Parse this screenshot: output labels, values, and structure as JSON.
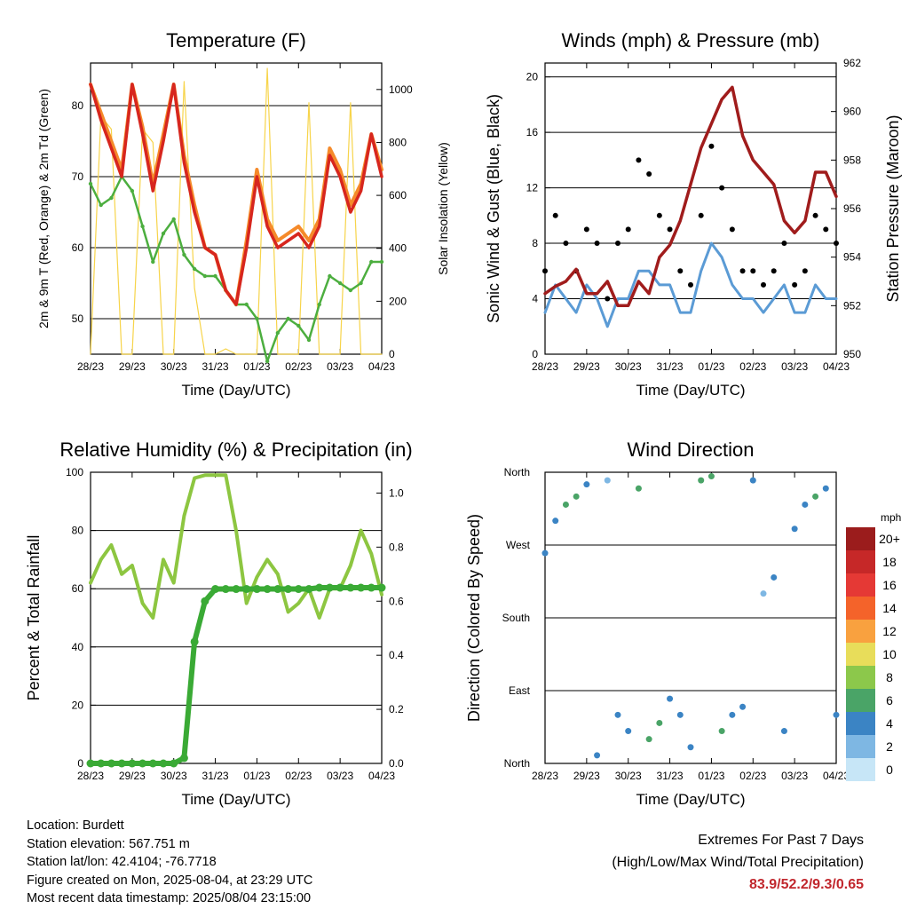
{
  "x_ticks": [
    "28/23",
    "29/23",
    "30/23",
    "31/23",
    "01/23",
    "02/23",
    "03/23",
    "04/23"
  ],
  "info": {
    "location": "Location: Burdett",
    "elevation": "Station elevation: 567.751 m",
    "latlon": "Station lat/lon: 42.4104; -76.7718",
    "created": "Figure created on Mon, 2025-08-04, at 23:29 UTC",
    "recent": "Most recent data timestamp: 2025/08/04 23:15:00"
  },
  "extremes": {
    "title": "Extremes For Past 7 Days",
    "subtitle": "(High/Low/Max Wind/Total Precipitation)",
    "values": "83.9/52.2/9.3/0.65"
  },
  "legend": {
    "title": "mph",
    "labels": [
      "20+",
      "18",
      "16",
      "14",
      "12",
      "10",
      "8",
      "6",
      "4",
      "2",
      "0"
    ],
    "colors": [
      "#9b1c1c",
      "#c62828",
      "#e53935",
      "#f4632a",
      "#f9a13f",
      "#e8dd5a",
      "#8cc84b",
      "#4aa467",
      "#3b84c4",
      "#7eb7e3",
      "#c7e6f7"
    ]
  },
  "colors": {
    "temp_2m": "#d7261e",
    "temp_9m": "#f58a2a",
    "dewpoint": "#4cae3f",
    "solar": "#f7d44a",
    "wind": "#5b9bd5",
    "gust": "#000000",
    "pressure": "#a01c1c",
    "rh": "#8dc641",
    "precip": "#3aaa35"
  },
  "chart_data": [
    {
      "type": "line",
      "title": "Temperature (F)",
      "xlabel": "Time (Day/UTC)",
      "ylabel": "2m & 9m T (Red, Orange) & 2m Td (Green)",
      "ylabel_right": "Solar Insolation (Yellow)",
      "x": [
        0,
        0.25,
        0.5,
        0.75,
        1,
        1.25,
        1.5,
        1.75,
        2,
        2.25,
        2.5,
        2.75,
        3,
        3.25,
        3.5,
        3.75,
        4,
        4.25,
        4.5,
        4.75,
        5,
        5.25,
        5.5,
        5.75,
        6,
        6.25,
        6.5,
        6.75,
        7
      ],
      "ylim": [
        45,
        86
      ],
      "yticks": [
        50,
        60,
        70,
        80
      ],
      "y2lim": [
        0,
        1100
      ],
      "y2ticks": [
        0,
        200,
        400,
        600,
        800,
        1000
      ],
      "series": [
        {
          "name": "2m T (Red)",
          "values": [
            83,
            78,
            74,
            70,
            83,
            76,
            68,
            75,
            83,
            72,
            65,
            60,
            59,
            54,
            52,
            60,
            70,
            63,
            60,
            61,
            62,
            60,
            63,
            73,
            70,
            65,
            68,
            76,
            70
          ]
        },
        {
          "name": "9m T (Orange)",
          "values": [
            83,
            79,
            75,
            71,
            83,
            77,
            69,
            76,
            83,
            73,
            66,
            60,
            59,
            54,
            52,
            61,
            71,
            64,
            61,
            62,
            63,
            61,
            64,
            74,
            71,
            66,
            69,
            76,
            71
          ]
        },
        {
          "name": "2m Td (Green)",
          "values": [
            69,
            66,
            67,
            70,
            68,
            63,
            58,
            62,
            64,
            59,
            57,
            56,
            56,
            54,
            52,
            52,
            50,
            44,
            48,
            50,
            49,
            47,
            52,
            56,
            55,
            54,
            55,
            58,
            58
          ]
        },
        {
          "name": "Solar Insolation (Yellow)",
          "values": [
            0,
            900,
            850,
            0,
            0,
            850,
            800,
            0,
            0,
            1030,
            250,
            0,
            0,
            20,
            0,
            0,
            0,
            1080,
            0,
            0,
            0,
            950,
            0,
            0,
            0,
            950,
            0,
            0,
            0
          ]
        }
      ]
    },
    {
      "type": "line",
      "title": "Winds (mph) & Pressure (mb)",
      "xlabel": "Time (Day/UTC)",
      "ylabel": "Sonic Wind & Gust (Blue, Black)",
      "ylabel_right": "Station Pressure (Maroon)",
      "x": [
        0,
        0.25,
        0.5,
        0.75,
        1,
        1.25,
        1.5,
        1.75,
        2,
        2.25,
        2.5,
        2.75,
        3,
        3.25,
        3.5,
        3.75,
        4,
        4.25,
        4.5,
        4.75,
        5,
        5.25,
        5.5,
        5.75,
        6,
        6.25,
        6.5,
        6.75,
        7
      ],
      "ylim": [
        0,
        21
      ],
      "yticks": [
        0,
        4,
        8,
        12,
        16,
        20
      ],
      "y2lim": [
        950,
        962
      ],
      "y2ticks": [
        950,
        952,
        954,
        956,
        958,
        960,
        962
      ],
      "series": [
        {
          "name": "Sonic Wind (Blue)",
          "values": [
            3,
            5,
            4,
            3,
            5,
            4,
            2,
            4,
            4,
            6,
            6,
            5,
            5,
            3,
            3,
            6,
            8,
            7,
            5,
            4,
            4,
            3,
            4,
            5,
            3,
            3,
            5,
            4,
            4
          ]
        },
        {
          "name": "Gust (Black)",
          "values": [
            6,
            10,
            8,
            6,
            9,
            8,
            4,
            8,
            9,
            14,
            13,
            10,
            9,
            6,
            5,
            10,
            15,
            12,
            9,
            6,
            6,
            5,
            6,
            8,
            5,
            6,
            10,
            9,
            8
          ]
        },
        {
          "name": "Station Pressure (Maroon)",
          "values": [
            952.5,
            952.8,
            953,
            953.5,
            952.5,
            952.5,
            953,
            952,
            952,
            953,
            952.5,
            954,
            954.5,
            955.5,
            957,
            958.5,
            959.5,
            960.5,
            961,
            959,
            958,
            957.5,
            957,
            955.5,
            955,
            955.5,
            957.5,
            957.5,
            956.5
          ]
        }
      ]
    },
    {
      "type": "line",
      "title": "Relative Humidity (%) & Precipitation (in)",
      "xlabel": "Time (Day/UTC)",
      "ylabel": "Percent & Total Rainfall",
      "x": [
        0,
        0.25,
        0.5,
        0.75,
        1,
        1.25,
        1.5,
        1.75,
        2,
        2.25,
        2.5,
        2.75,
        3,
        3.25,
        3.5,
        3.75,
        4,
        4.25,
        4.5,
        4.75,
        5,
        5.25,
        5.5,
        5.75,
        6,
        6.25,
        6.5,
        6.75,
        7
      ],
      "ylim": [
        0,
        100
      ],
      "yticks": [
        0,
        20,
        40,
        60,
        80,
        100
      ],
      "y2lim": [
        0,
        1.0769
      ],
      "y2ticks": [
        0.0,
        0.2,
        0.4,
        0.6,
        0.8,
        1.0
      ],
      "series": [
        {
          "name": "Relative Humidity",
          "values": [
            62,
            70,
            75,
            65,
            68,
            55,
            50,
            70,
            62,
            85,
            98,
            99,
            99,
            99,
            80,
            55,
            64,
            70,
            65,
            52,
            55,
            60,
            50,
            60,
            60,
            68,
            80,
            72,
            58
          ]
        },
        {
          "name": "Total Precipitation",
          "values": [
            0,
            0,
            0,
            0,
            0,
            0,
            0,
            0,
            0,
            0.02,
            0.45,
            0.6,
            0.645,
            0.645,
            0.645,
            0.645,
            0.645,
            0.645,
            0.645,
            0.645,
            0.645,
            0.645,
            0.65,
            0.65,
            0.65,
            0.65,
            0.65,
            0.65,
            0.65
          ]
        }
      ]
    },
    {
      "type": "scatter",
      "title": "Wind Direction",
      "xlabel": "Time (Day/UTC)",
      "ylabel": "Direction (Colored By Speed)",
      "yticks": [
        "North",
        "West",
        "South",
        "East",
        "North"
      ],
      "x": [
        0,
        0.25,
        0.5,
        0.75,
        1,
        1.25,
        1.5,
        1.75,
        2,
        2.25,
        2.5,
        2.75,
        3,
        3.25,
        3.5,
        3.75,
        4,
        4.25,
        4.5,
        4.75,
        5,
        5.25,
        5.5,
        5.75,
        6,
        6.25,
        6.5,
        6.75,
        7
      ],
      "series": [
        {
          "name": "Direction",
          "values": [
            260,
            300,
            320,
            330,
            345,
            10,
            350,
            60,
            40,
            340,
            30,
            50,
            80,
            60,
            20,
            350,
            355,
            40,
            60,
            70,
            350,
            210,
            230,
            40,
            290,
            320,
            330,
            340,
            60
          ]
        },
        {
          "name": "Speed",
          "values": [
            3,
            4,
            5,
            6,
            4,
            3,
            2,
            3,
            4,
            5,
            6,
            5,
            4,
            3,
            3,
            5,
            6,
            5,
            4,
            3,
            3,
            2,
            3,
            4,
            3,
            4,
            5,
            4,
            3
          ]
        }
      ]
    }
  ]
}
